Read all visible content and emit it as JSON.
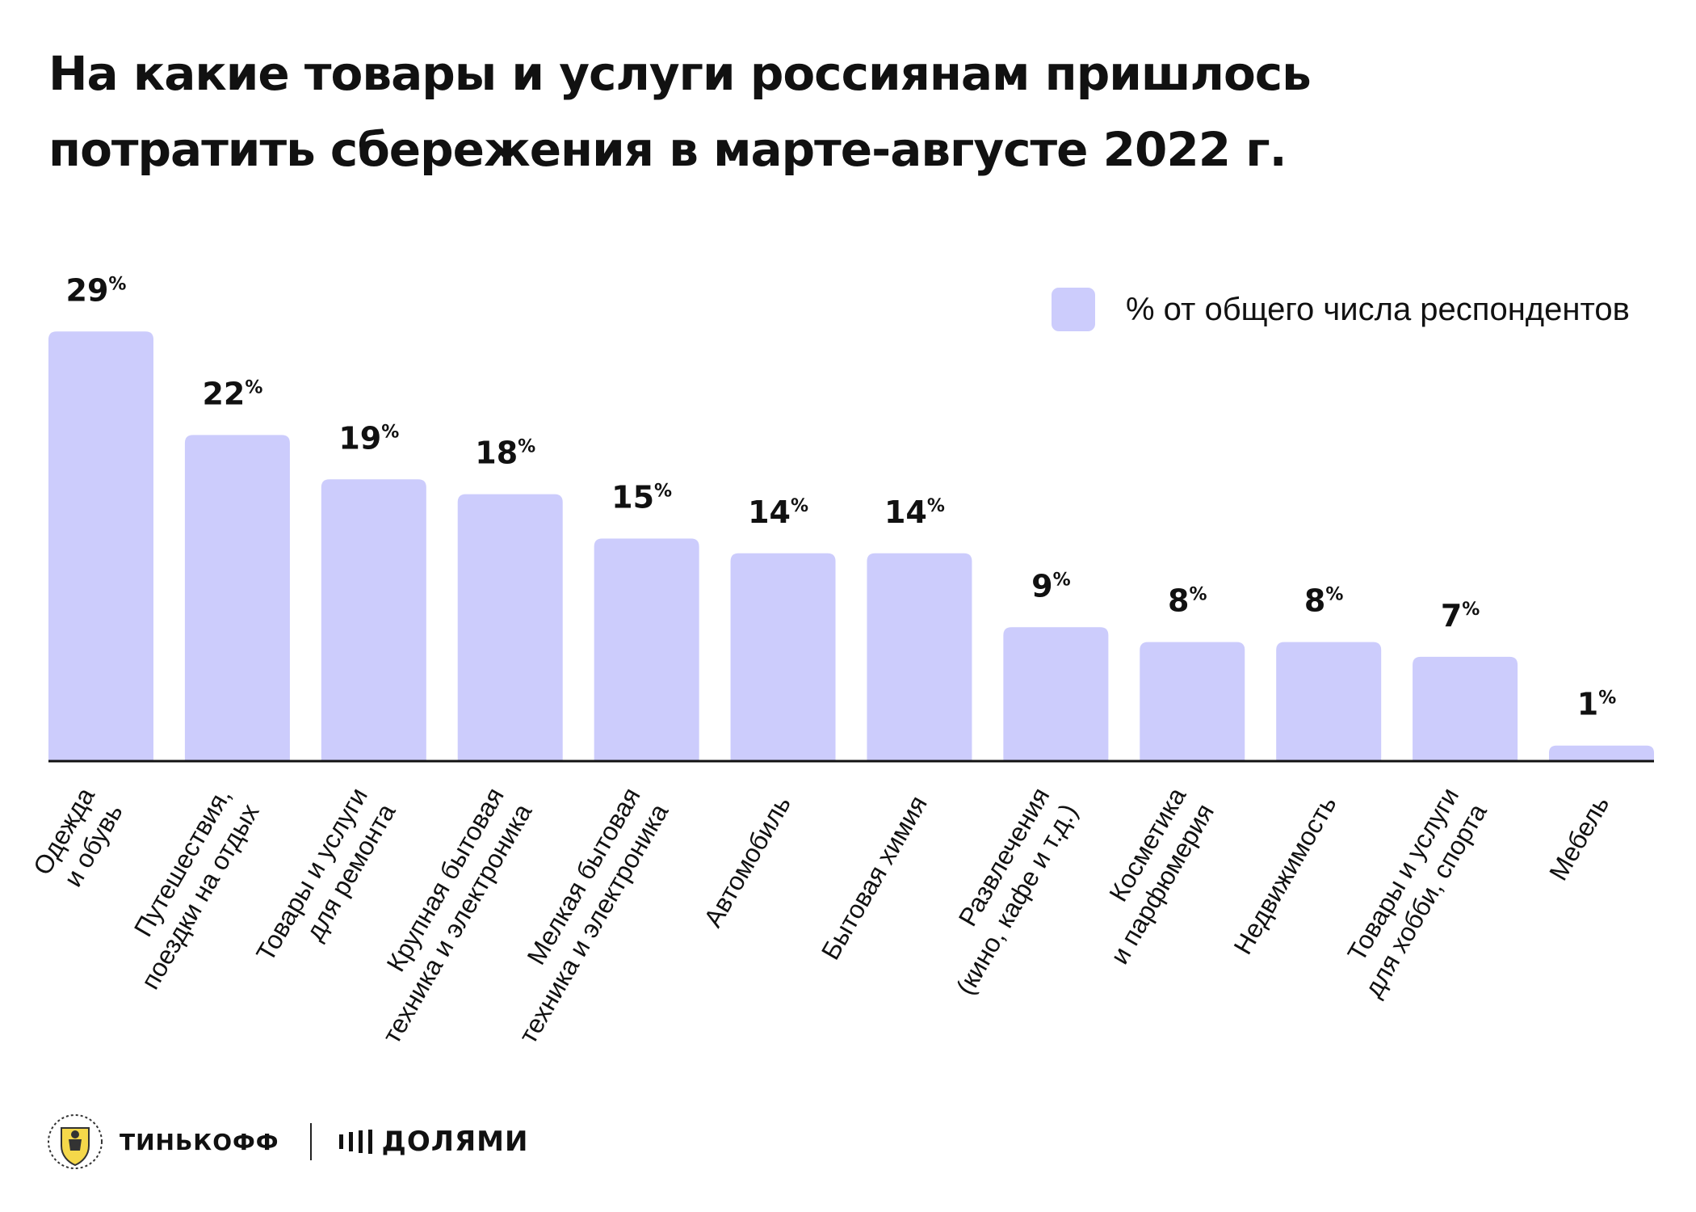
{
  "title": {
    "line1": "На какие товары и услуги россиянам пришлось",
    "line2": "потратить сбережения в марте-августе 2022 г."
  },
  "legend": {
    "label": "% от общего числа респондентов",
    "color": "#ccccfc"
  },
  "chart_data": {
    "type": "bar",
    "title": "На какие товары и услуги россиянам пришлось потратить сбережения в марте-августе 2022 г.",
    "xlabel": "",
    "ylabel": "",
    "ylim": [
      0,
      29
    ],
    "grid": false,
    "legend_position": "top-right",
    "bar_color": "#ccccfc",
    "value_unit": "%",
    "categories": [
      [
        "Одежда",
        "и обувь"
      ],
      [
        "Путешествия,",
        "поездки на отдых"
      ],
      [
        "Товары и услуги",
        "для ремонта"
      ],
      [
        "Крупная бытовая",
        "техника и электроника"
      ],
      [
        "Мелкая бытовая",
        "техника и электроника"
      ],
      [
        "Автомобиль"
      ],
      [
        "Бытовая химия"
      ],
      [
        "Развлечения",
        "(кино, кафе и т.д.)"
      ],
      [
        "Косметика",
        "и парфюмерия"
      ],
      [
        "Недвижимость"
      ],
      [
        "Товары и услуги",
        "для хобби, спорта"
      ],
      [
        "Мебель"
      ]
    ],
    "series": [
      {
        "name": "% от общего числа респондентов",
        "values": [
          29,
          22,
          19,
          18,
          15,
          14,
          14,
          9,
          8,
          8,
          7,
          1
        ]
      }
    ]
  },
  "footer": {
    "brand1": "ТИНЬКОФФ",
    "brand2": "ДОЛЯМИ",
    "emblem_icon": "tinkoff-shield-emblem"
  }
}
